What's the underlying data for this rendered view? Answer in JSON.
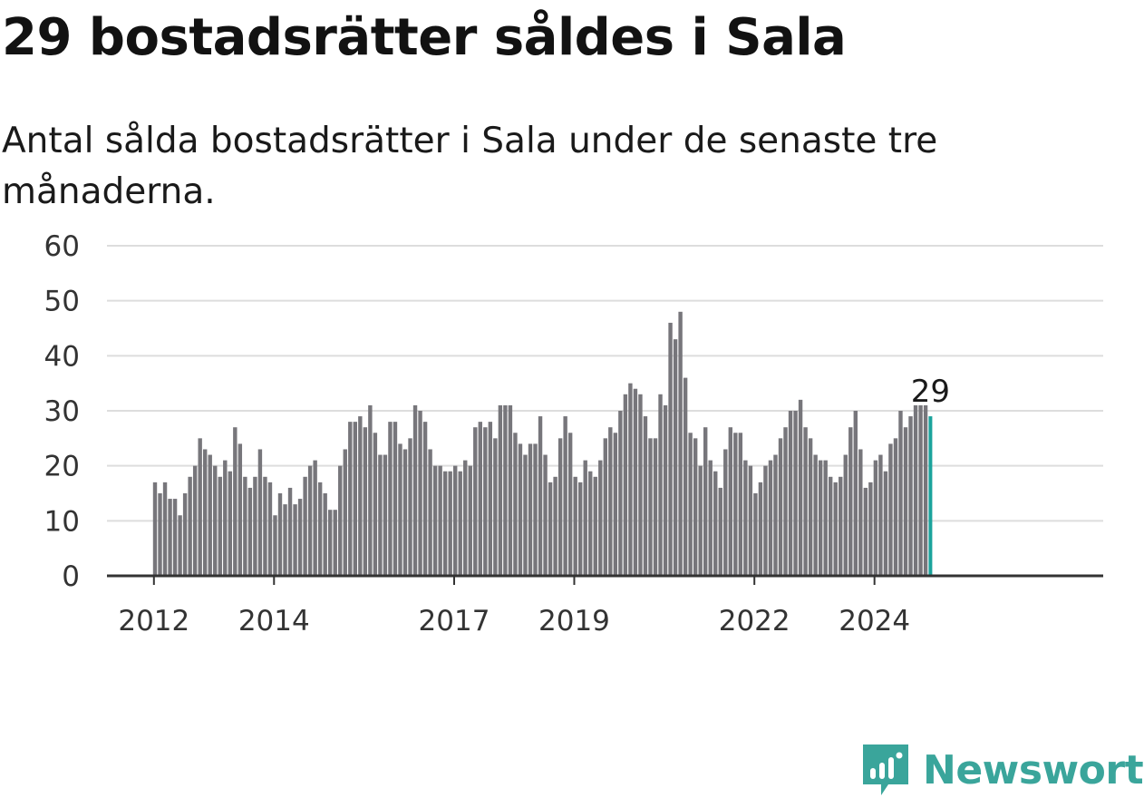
{
  "title": "29 bostadsrätter såldes i Sala",
  "subtitle": "Antal sålda bostadsrätter i Sala under de senaste tre månaderna.",
  "brand": {
    "name": "Newsworthy"
  },
  "colors": {
    "bar": "#77767b",
    "highlight": "#1ba39c",
    "grid": "#dddddd",
    "axis": "#333333",
    "brand": "#3aa59b"
  },
  "chart_data": {
    "type": "bar",
    "title": "29 bostadsrätter såldes i Sala",
    "subtitle": "Antal sålda bostadsrätter i Sala under de senaste tre månaderna.",
    "xlabel": "",
    "ylabel": "",
    "ylim": [
      0,
      60
    ],
    "yticks": [
      0,
      10,
      20,
      30,
      40,
      50,
      60
    ],
    "grid": true,
    "x_start_month": "2012-01",
    "xtick_labels": [
      "2012",
      "2014",
      "2017",
      "2019",
      "2022",
      "2024"
    ],
    "xtick_indices": [
      0,
      24,
      60,
      84,
      120,
      144
    ],
    "highlight_label": "29",
    "values": [
      17,
      15,
      17,
      14,
      14,
      11,
      15,
      18,
      20,
      25,
      23,
      22,
      20,
      18,
      21,
      19,
      27,
      24,
      18,
      16,
      18,
      23,
      18,
      17,
      11,
      15,
      13,
      16,
      13,
      14,
      18,
      20,
      21,
      17,
      15,
      12,
      12,
      20,
      23,
      28,
      28,
      29,
      27,
      31,
      26,
      22,
      22,
      28,
      28,
      24,
      23,
      25,
      31,
      30,
      28,
      23,
      20,
      20,
      19,
      19,
      20,
      19,
      21,
      20,
      27,
      28,
      27,
      28,
      25,
      31,
      31,
      31,
      26,
      24,
      22,
      24,
      24,
      29,
      22,
      17,
      18,
      25,
      29,
      26,
      18,
      17,
      21,
      19,
      18,
      21,
      25,
      27,
      26,
      30,
      33,
      35,
      34,
      33,
      29,
      25,
      25,
      33,
      31,
      46,
      43,
      48,
      36,
      26,
      25,
      20,
      27,
      21,
      19,
      16,
      23,
      27,
      26,
      26,
      21,
      20,
      15,
      17,
      20,
      21,
      22,
      25,
      27,
      30,
      30,
      32,
      27,
      25,
      22,
      21,
      21,
      18,
      17,
      18,
      22,
      27,
      30,
      23,
      16,
      17,
      21,
      22,
      19,
      24,
      25,
      30,
      27,
      29,
      31,
      31,
      31,
      29
    ]
  }
}
